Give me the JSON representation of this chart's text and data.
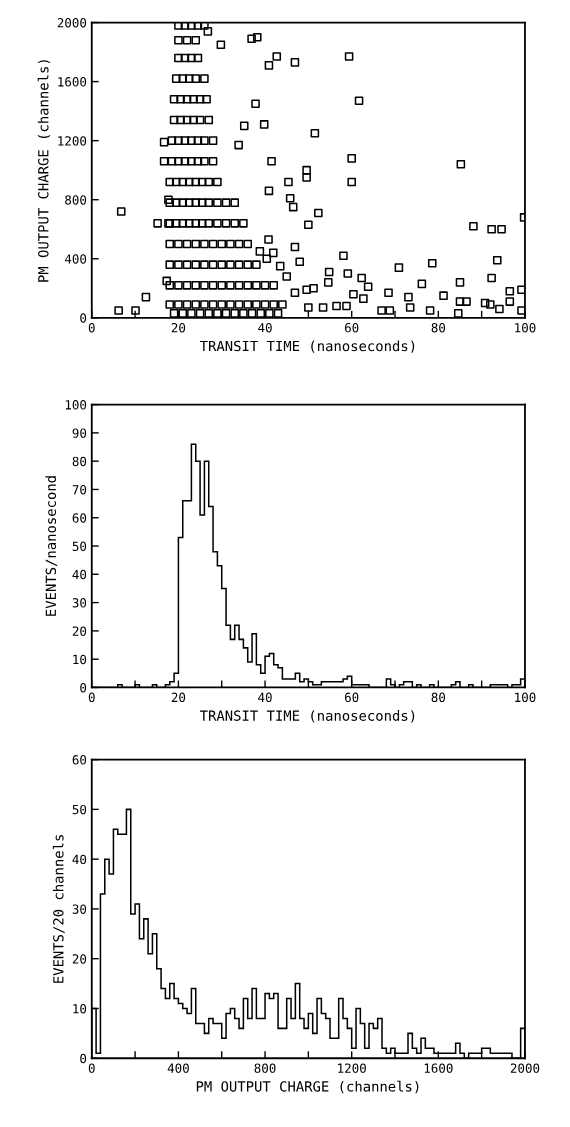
{
  "chart_data": [
    {
      "type": "scatter",
      "xlabel": "TRANSIT TIME (nanoseconds)",
      "ylabel": "PM OUTPUT CHARGE (channels)",
      "marker": "square",
      "xlim": [
        0,
        100
      ],
      "ylim": [
        0,
        2000
      ],
      "xticks": [
        0,
        {
          "value": 10,
          "label": null
        },
        20,
        {
          "value": 30,
          "label": null
        },
        40,
        {
          "value": 50,
          "label": null
        },
        60,
        {
          "value": 70,
          "label": null
        },
        80,
        {
          "value": 90,
          "label": null
        },
        100
      ],
      "yticks": [
        0,
        400,
        800,
        1200,
        1600,
        2000
      ],
      "series": [
        {
          "color": "#000000",
          "x": [
            20,
            21.5,
            23,
            24.5,
            26,
            20,
            22,
            24,
            20,
            21.5,
            23,
            24.5,
            19.5,
            21,
            22.5,
            24,
            26,
            19,
            20.5,
            22,
            23.5,
            25,
            26.5,
            19,
            20.5,
            22,
            23.5,
            25,
            27,
            18.5,
            20,
            21.5,
            23,
            24.5,
            26,
            28,
            18.5,
            20,
            21.5,
            23,
            24.5,
            26,
            28,
            18,
            19.5,
            21,
            22.5,
            24,
            25.5,
            27,
            29,
            18,
            19.5,
            21,
            22.5,
            24,
            25.5,
            27,
            29,
            31,
            33,
            18,
            19.5,
            21,
            22.5,
            24,
            25.5,
            27,
            29,
            31,
            33,
            35,
            18,
            20,
            22,
            24,
            26,
            28,
            30,
            32,
            34,
            36,
            18,
            20,
            22,
            24,
            26,
            28,
            30,
            32,
            34,
            36,
            38,
            18,
            20,
            22,
            24,
            26,
            28,
            30,
            32,
            34,
            36,
            38,
            40,
            42,
            18,
            20,
            22,
            24,
            26,
            28,
            30,
            32,
            34,
            36,
            38,
            40,
            42,
            44,
            19,
            21,
            23,
            25,
            27,
            29,
            31,
            33,
            35,
            37,
            39,
            41,
            43,
            6.8,
            6.2,
            10.1,
            12.5,
            15.2,
            17.7,
            16.7,
            16.7,
            17.7,
            17.3,
            29.8,
            26.8,
            36.9,
            38.2,
            42.7,
            40.9,
            46.9,
            59.4,
            61.7,
            37.8,
            35.2,
            39.8,
            51.5,
            33.9,
            41.5,
            49.6,
            49.6,
            60,
            60,
            85.2,
            45.4,
            40.9,
            45.8,
            46.5,
            52.3,
            50,
            88.1,
            92.3,
            94.6,
            99.8,
            40.8,
            46.9,
            48,
            58.1,
            70.9,
            78.6,
            93.6,
            54.8,
            59.1,
            62.3,
            63.8,
            62.7,
            76.2,
            85,
            92.3,
            81.2,
            85,
            86.5,
            96.5,
            99.2,
            96.5,
            90.8,
            94.1,
            92,
            99.2,
            73.1,
            73.5,
            78.1,
            84.6,
            66.9,
            68.8,
            68.5,
            50,
            53.4,
            56.5,
            58.8,
            60.4,
            54.6,
            49.6,
            46.9,
            51.2,
            43.5,
            45,
            40.4,
            38.8,
            41.9
          ],
          "values": [
            1980,
            1980,
            1980,
            1980,
            1980,
            1880,
            1880,
            1880,
            1760,
            1760,
            1760,
            1760,
            1620,
            1620,
            1620,
            1620,
            1620,
            1480,
            1480,
            1480,
            1480,
            1480,
            1480,
            1340,
            1340,
            1340,
            1340,
            1340,
            1340,
            1200,
            1200,
            1200,
            1200,
            1200,
            1200,
            1200,
            1060,
            1060,
            1060,
            1060,
            1060,
            1060,
            1060,
            920,
            920,
            920,
            920,
            920,
            920,
            920,
            920,
            780,
            780,
            780,
            780,
            780,
            780,
            780,
            780,
            780,
            780,
            640,
            640,
            640,
            640,
            640,
            640,
            640,
            640,
            640,
            640,
            640,
            500,
            500,
            500,
            500,
            500,
            500,
            500,
            500,
            500,
            500,
            360,
            360,
            360,
            360,
            360,
            360,
            360,
            360,
            360,
            360,
            360,
            220,
            220,
            220,
            220,
            220,
            220,
            220,
            220,
            220,
            220,
            220,
            220,
            220,
            90,
            90,
            90,
            90,
            90,
            90,
            90,
            90,
            90,
            90,
            90,
            90,
            90,
            90,
            30,
            30,
            30,
            30,
            30,
            30,
            30,
            30,
            30,
            30,
            30,
            30,
            30,
            720,
            50,
            50,
            140,
            640,
            640,
            1190,
            1060,
            800,
            250,
            1850,
            1940,
            1890,
            1900,
            1770,
            1710,
            1730,
            1770,
            1470,
            1450,
            1300,
            1310,
            1250,
            1170,
            1060,
            1000,
            950,
            1080,
            920,
            1040,
            920,
            860,
            810,
            750,
            710,
            630,
            620,
            600,
            600,
            680,
            530,
            480,
            380,
            420,
            340,
            370,
            390,
            310,
            300,
            270,
            210,
            130,
            230,
            240,
            270,
            150,
            110,
            110,
            180,
            190,
            110,
            100,
            60,
            90,
            50,
            140,
            70,
            50,
            30,
            50,
            50,
            170,
            70,
            70,
            80,
            80,
            160,
            240,
            190,
            170,
            200,
            350,
            280,
            400,
            450,
            440
          ]
        }
      ]
    },
    {
      "type": "histogram",
      "xlabel": "TRANSIT TIME (nanoseconds)",
      "ylabel": "EVENTS/nanosecond",
      "xlim": [
        0,
        100
      ],
      "ylim": [
        0,
        100
      ],
      "xticks": [
        0,
        {
          "value": 10,
          "label": null
        },
        20,
        {
          "value": 30,
          "label": null
        },
        40,
        {
          "value": 50,
          "label": null
        },
        60,
        {
          "value": 70,
          "label": null
        },
        80,
        {
          "value": 90,
          "label": null
        },
        100
      ],
      "yticks": [
        0,
        10,
        20,
        30,
        40,
        50,
        60,
        70,
        80,
        90,
        100
      ],
      "color": "#000000",
      "bins": [
        0,
        1,
        2,
        3,
        4,
        5,
        6,
        7,
        8,
        9,
        10,
        11,
        12,
        13,
        14,
        15,
        16,
        17,
        18,
        19,
        20,
        21,
        22,
        23,
        24,
        25,
        26,
        27,
        28,
        29,
        30,
        31,
        32,
        33,
        34,
        35,
        36,
        37,
        38,
        39,
        40,
        41,
        42,
        43,
        44,
        45,
        46,
        47,
        48,
        49,
        50,
        51,
        52,
        53,
        54,
        55,
        56,
        57,
        58,
        59,
        60,
        61,
        62,
        63,
        64,
        65,
        66,
        67,
        68,
        69,
        70,
        71,
        72,
        73,
        74,
        75,
        76,
        77,
        78,
        79,
        80,
        81,
        82,
        83,
        84,
        85,
        86,
        87,
        88,
        89,
        90,
        91,
        92,
        93,
        94,
        95,
        96,
        97,
        98,
        99,
        100
      ],
      "values": [
        0,
        0,
        0,
        0,
        0,
        0,
        1,
        0,
        0,
        0,
        1,
        0,
        0,
        0,
        1,
        0,
        0,
        1,
        2,
        5,
        53,
        66,
        66,
        86,
        80,
        61,
        80,
        64,
        48,
        43,
        35,
        22,
        17,
        22,
        17,
        14,
        9,
        19,
        8,
        5,
        11,
        12,
        8,
        7,
        3,
        3,
        3,
        5,
        2,
        3,
        2,
        1,
        1,
        2,
        2,
        2,
        2,
        2,
        3,
        4,
        1,
        1,
        1,
        1,
        0,
        0,
        0,
        0,
        3,
        1,
        0,
        1,
        2,
        2,
        0,
        1,
        0,
        0,
        1,
        0,
        0,
        0,
        0,
        1,
        2,
        0,
        0,
        1,
        0,
        0,
        0,
        0,
        1,
        1,
        1,
        1,
        0,
        1,
        1,
        3
      ]
    },
    {
      "type": "histogram",
      "xlabel": "PM OUTPUT CHARGE (channels)",
      "ylabel": "EVENTS/20 channels",
      "xlim": [
        0,
        2000
      ],
      "ylim": [
        0,
        60
      ],
      "xticks": [
        0,
        {
          "value": 200,
          "label": null
        },
        400,
        {
          "value": 600,
          "label": null
        },
        800,
        {
          "value": 1000,
          "label": null
        },
        1200,
        {
          "value": 1400,
          "label": null
        },
        1600,
        {
          "value": 1800,
          "label": null
        },
        2000
      ],
      "yticks": [
        0,
        10,
        20,
        30,
        40,
        50,
        60
      ],
      "color": "#000000",
      "bins": [
        0,
        20,
        40,
        60,
        80,
        100,
        120,
        140,
        160,
        180,
        200,
        220,
        240,
        260,
        280,
        300,
        320,
        340,
        360,
        380,
        400,
        420,
        440,
        460,
        480,
        500,
        520,
        540,
        560,
        580,
        600,
        620,
        640,
        660,
        680,
        700,
        720,
        740,
        760,
        780,
        800,
        820,
        840,
        860,
        880,
        900,
        920,
        940,
        960,
        980,
        1000,
        1020,
        1040,
        1060,
        1080,
        1100,
        1120,
        1140,
        1160,
        1180,
        1200,
        1220,
        1240,
        1260,
        1280,
        1300,
        1320,
        1340,
        1360,
        1380,
        1400,
        1420,
        1440,
        1460,
        1480,
        1500,
        1520,
        1540,
        1560,
        1580,
        1600,
        1620,
        1640,
        1660,
        1680,
        1700,
        1720,
        1740,
        1760,
        1780,
        1800,
        1820,
        1840,
        1860,
        1880,
        1900,
        1920,
        1940,
        1960,
        1980,
        2000
      ],
      "values": [
        10,
        1,
        33,
        40,
        37,
        46,
        45,
        45,
        50,
        29,
        31,
        24,
        28,
        21,
        25,
        18,
        14,
        12,
        15,
        12,
        11,
        10,
        9,
        14,
        7,
        7,
        5,
        8,
        7,
        7,
        4,
        9,
        10,
        8,
        6,
        12,
        8,
        14,
        8,
        8,
        13,
        12,
        13,
        6,
        6,
        12,
        8,
        15,
        8,
        6,
        9,
        5,
        12,
        9,
        8,
        4,
        4,
        12,
        8,
        6,
        2,
        10,
        7,
        2,
        7,
        6,
        8,
        2,
        1,
        2,
        1,
        1,
        1,
        5,
        2,
        1,
        4,
        2,
        2,
        1,
        1,
        1,
        1,
        1,
        3,
        1,
        0,
        1,
        1,
        1,
        2,
        2,
        1,
        1,
        1,
        1,
        1,
        0,
        0,
        6
      ]
    }
  ]
}
